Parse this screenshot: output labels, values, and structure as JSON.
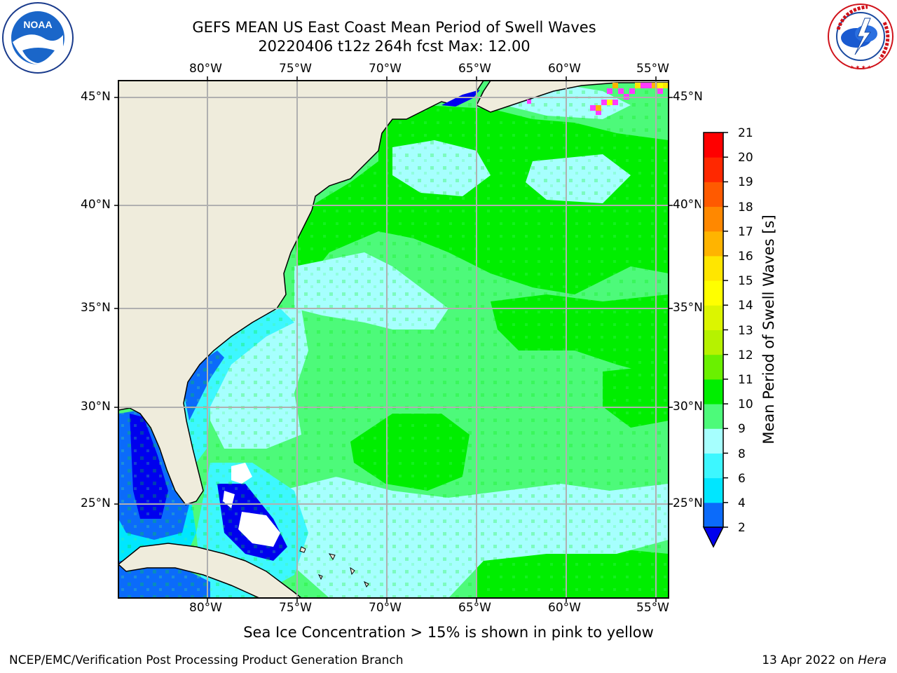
{
  "title": {
    "line1": "GEFS MEAN US East Coast Mean Period of Swell Waves",
    "line2": "20220406 t12z 264h fcst   Max: 12.00"
  },
  "map": {
    "lon_labels": [
      "80°W",
      "75°W",
      "70°W",
      "65°W",
      "60°W",
      "55°W"
    ],
    "lat_labels": [
      "45°N",
      "40°N",
      "35°N",
      "30°N",
      "25°N"
    ],
    "lon_range": [
      -84.4,
      -53.6
    ],
    "lat_range": [
      20.3,
      45.9
    ],
    "land_color": "#efecdc",
    "grid_color": "#b0b0b0"
  },
  "colorbar": {
    "label": "Mean Period of Swell Waves [s]",
    "tick_labels": [
      "2",
      "4",
      "6",
      "8",
      "9",
      "10",
      "11",
      "12",
      "13",
      "14",
      "15",
      "16",
      "17",
      "18",
      "19",
      "20",
      "21"
    ],
    "colors": [
      "#0b6bfa",
      "#00e6ff",
      "#3df7ff",
      "#a6fffe",
      "#4dfa7a",
      "#00ee00",
      "#6af000",
      "#b6f200",
      "#dcf500",
      "#ffff00",
      "#ffe600",
      "#ffb400",
      "#ff8800",
      "#ff5a00",
      "#ff2800",
      "#ff0000"
    ],
    "under_color": "#0000ee"
  },
  "logos": {
    "noaa_text": "NOAA",
    "nws_text": "NATIONAL WEATHER SERVICE"
  },
  "caption": "Sea Ice Concentration > 15% is shown in pink to yellow",
  "credits": {
    "left": "NCEP/EMC/Verification Post Processing Product Generation Branch",
    "right_date": "13 Apr 2022 on",
    "right_machine": "Hera"
  }
}
